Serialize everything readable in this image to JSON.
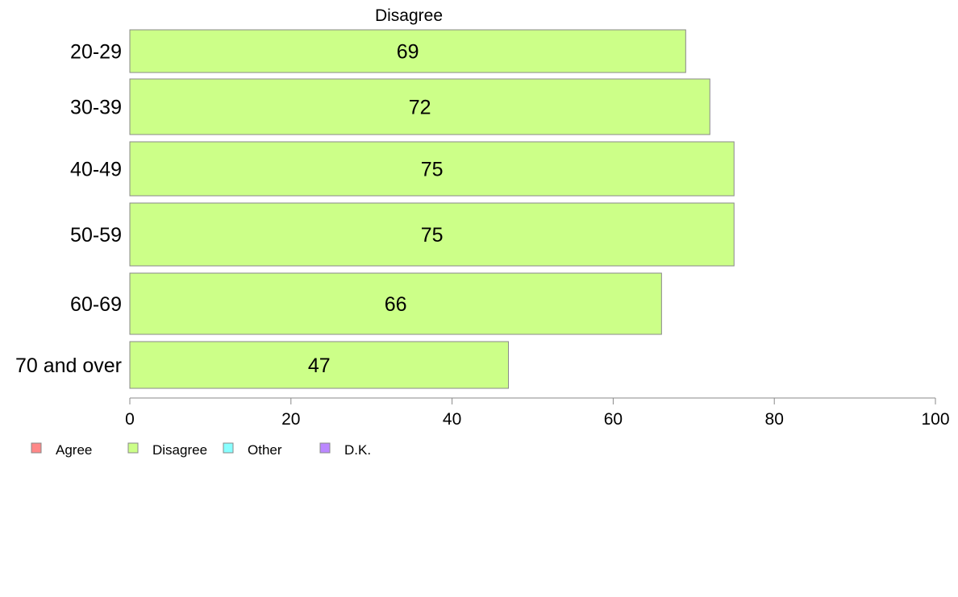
{
  "chart_data": {
    "type": "bar",
    "orientation": "horizontal",
    "title": "Disagree",
    "categories": [
      "20-29",
      "30-39",
      "40-49",
      "50-59",
      "60-69",
      "70 and over"
    ],
    "series": [
      {
        "name": "Disagree",
        "values": [
          69,
          72,
          75,
          75,
          66,
          47
        ],
        "color": "#ccff88"
      }
    ],
    "xlim": [
      0,
      100
    ],
    "xticks": [
      0,
      20,
      40,
      60,
      80,
      100
    ],
    "legend_position": "bottom-left",
    "legend": [
      {
        "label": "Agree",
        "color": "#ff8888"
      },
      {
        "label": "Disagree",
        "color": "#ccff88"
      },
      {
        "label": "Other",
        "color": "#88ffff"
      },
      {
        "label": "D.K.",
        "color": "#bb88ff"
      }
    ],
    "bar_stroke": "#888888",
    "grid": false
  }
}
